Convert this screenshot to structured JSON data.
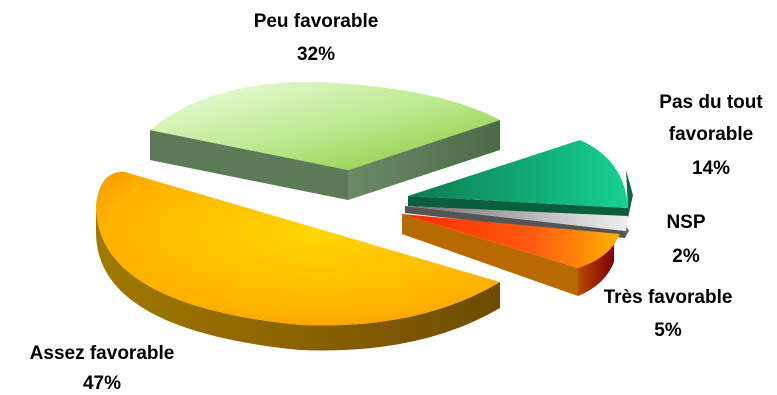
{
  "chart_data": {
    "type": "pie",
    "style": "3d-exploded",
    "slices": [
      {
        "category": "Peu favorable",
        "value": 32,
        "value_label": "32%",
        "colors": [
          "#c8f0a8",
          "#8fce3c"
        ]
      },
      {
        "category": "Pas du tout favorable",
        "category_lines": [
          "Pas du tout",
          "favorable"
        ],
        "value": 14,
        "value_label": "14%",
        "colors": [
          "#0e8a5a",
          "#10c98c"
        ]
      },
      {
        "category": "NSP",
        "value": 2,
        "value_label": "2%",
        "colors": [
          "#7a7a7a",
          "#e6e6e6"
        ]
      },
      {
        "category": "Très favorable",
        "value": 5,
        "value_label": "5%",
        "colors": [
          "#ffd23a",
          "#ff3300"
        ]
      },
      {
        "category": "Assez favorable",
        "value": 47,
        "value_label": "47%",
        "colors": [
          "#ffcc00",
          "#f0a000"
        ]
      }
    ],
    "legend": "none",
    "grid": false
  }
}
